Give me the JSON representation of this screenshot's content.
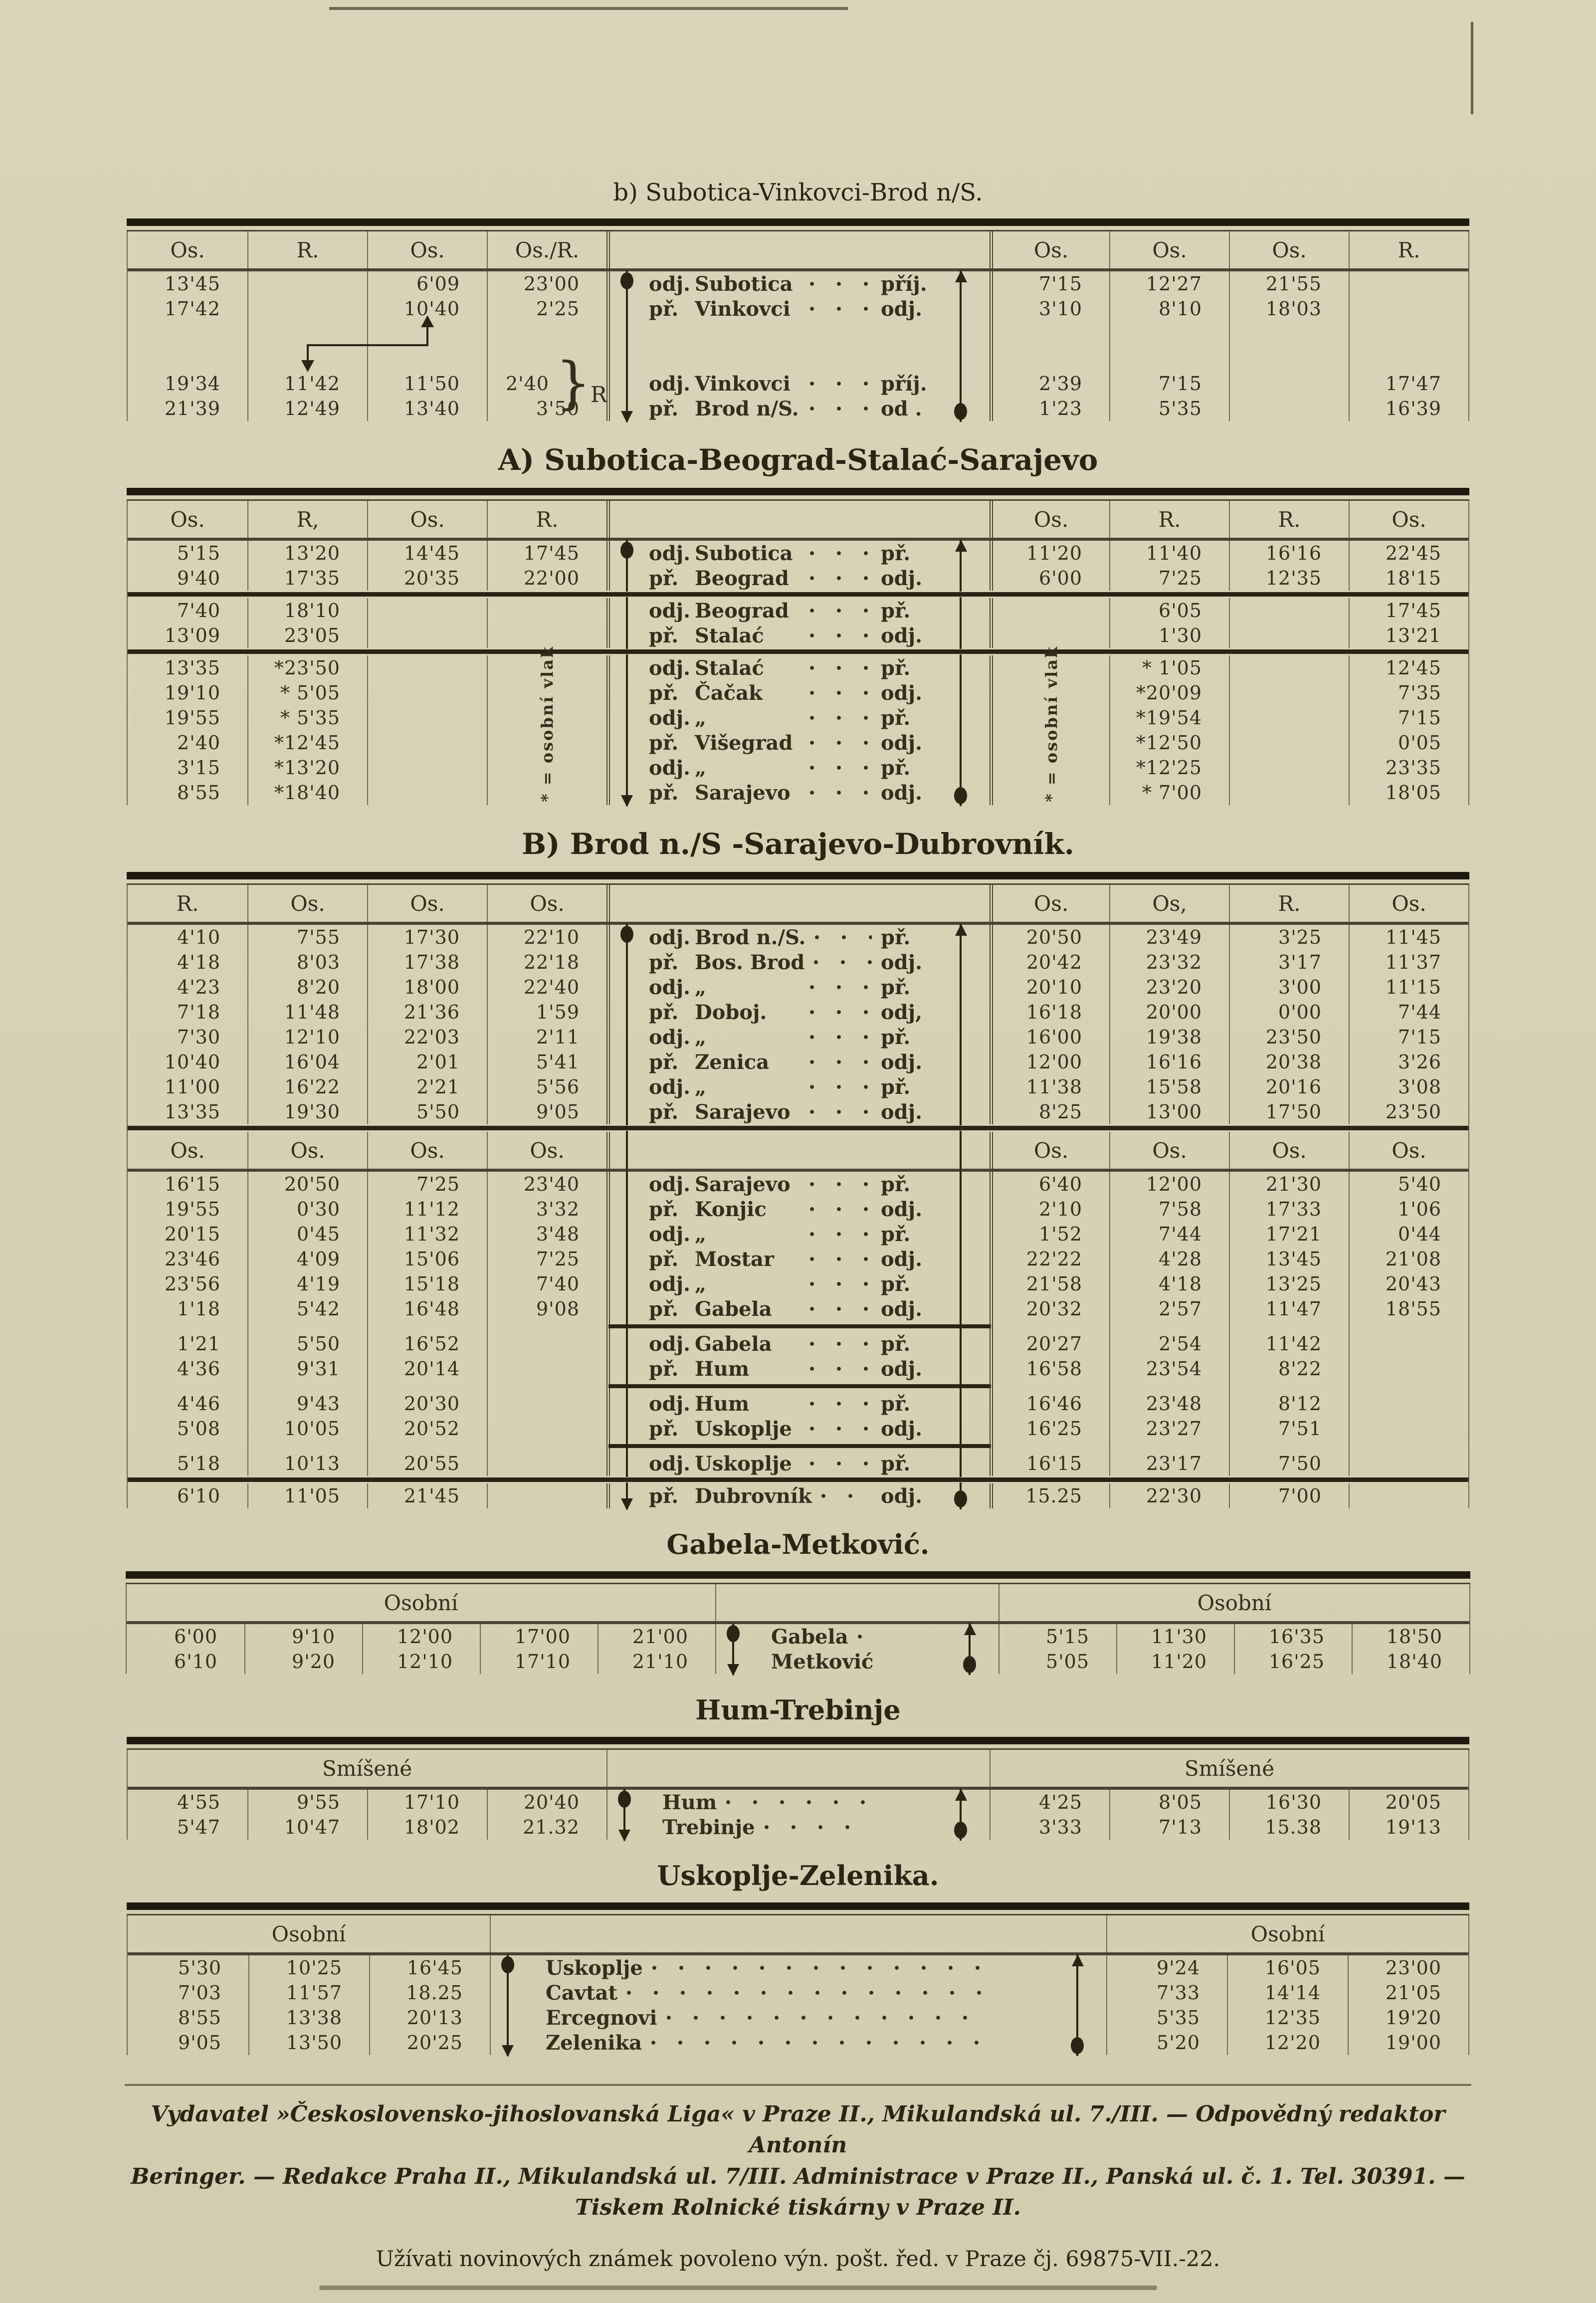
{
  "legend": {
    "note": "* = osobní vlak"
  },
  "tables": [
    {
      "title": "b) Subotica-Vinkovci-Brod n/S.",
      "blocks": [
        {
          "kind": "header",
          "left": [
            "Os.",
            "R.",
            "Os.",
            "Os./R."
          ],
          "right": [
            "Os.",
            "Os.",
            "Os.",
            "R."
          ]
        },
        {
          "kind": "rows",
          "rows": [
            {
              "l": [
                "13'45",
                "",
                "6'09",
                "23'00"
              ],
              "pre": "odj.",
              "name": "Subotica",
              "post": "příj.",
              "r": [
                "7'15",
                "12'27",
                "21'55",
                ""
              ]
            },
            {
              "l": [
                "17'42",
                "",
                "10'40",
                "2'25"
              ],
              "pre": "př.",
              "name": "Vinkovci",
              "post": "odj.",
              "r": [
                "3'10",
                "8'10",
                "18'03",
                ""
              ]
            }
          ]
        },
        {
          "kind": "gap"
        },
        {
          "kind": "rows",
          "rows": [
            {
              "l": [
                "19'34",
                "11'42",
                "11'50",
                "2'40"
              ],
              "pre": "odj.",
              "name": "Vinkovci",
              "post": "příj.",
              "r": [
                "2'39",
                "7'15",
                "",
                "17'47"
              ],
              "brace": "R"
            },
            {
              "l": [
                "21'39",
                "12'49",
                "13'40",
                "3'50"
              ],
              "pre": "př.",
              "name": "Brod n/S.",
              "post": "od .",
              "r": [
                "1'23",
                "5'35",
                "",
                "16'39"
              ]
            }
          ]
        }
      ]
    },
    {
      "title": "A) Subotica-Beograd-Stalać-Sarajevo",
      "blocks": [
        {
          "kind": "header",
          "left": [
            "Os.",
            "R,",
            "Os.",
            "R."
          ],
          "right": [
            "Os.",
            "R.",
            "R.",
            "Os."
          ]
        },
        {
          "kind": "rows",
          "rows": [
            {
              "l": [
                "5'15",
                "13'20",
                "14'45",
                "17'45"
              ],
              "pre": "odj.",
              "name": "Subotica",
              "post": "př.",
              "r": [
                "11'20",
                "11'40",
                "16'16",
                "22'45"
              ]
            },
            {
              "l": [
                "9'40",
                "17'35",
                "20'35",
                "22'00"
              ],
              "pre": "př.",
              "name": "Beograd",
              "post": "odj.",
              "r": [
                "6'00",
                "7'25",
                "12'35",
                "18'15"
              ]
            }
          ]
        },
        {
          "kind": "sep",
          "style": "full"
        },
        {
          "kind": "rows",
          "rows": [
            {
              "l": [
                "7'40",
                "18'10",
                "",
                ""
              ],
              "pre": "odj.",
              "name": "Beograd",
              "post": "př.",
              "r": [
                "",
                "6'05",
                "",
                "17'45"
              ]
            },
            {
              "l": [
                "13'09",
                "23'05",
                "",
                ""
              ],
              "pre": "př.",
              "name": "Stalać",
              "post": "odj.",
              "r": [
                "",
                "1'30",
                "",
                "13'21"
              ]
            }
          ]
        },
        {
          "kind": "sep",
          "style": "full"
        },
        {
          "kind": "rows",
          "rows": [
            {
              "l": [
                "13'35",
                "*23'50",
                "",
                ""
              ],
              "pre": "odj.",
              "name": "Stalać",
              "post": "př.",
              "r": [
                "",
                "* 1'05",
                "",
                "12'45"
              ],
              "noteL": true,
              "noteR": true
            },
            {
              "l": [
                "19'10",
                "* 5'05",
                "",
                ""
              ],
              "pre": "př.",
              "name": "Čačak",
              "post": "odj.",
              "r": [
                "",
                "*20'09",
                "",
                "7'35"
              ]
            },
            {
              "l": [
                "19'55",
                "* 5'35",
                "",
                ""
              ],
              "pre": "odj.",
              "name": "„",
              "post": "př.",
              "r": [
                "",
                "*19'54",
                "",
                "7'15"
              ]
            },
            {
              "l": [
                "2'40",
                "*12'45",
                "",
                ""
              ],
              "pre": "př.",
              "name": "Višegrad",
              "post": "odj.",
              "r": [
                "",
                "*12'50",
                "",
                "0'05"
              ]
            },
            {
              "l": [
                "3'15",
                "*13'20",
                "",
                ""
              ],
              "pre": "odj.",
              "name": "„",
              "post": "př.",
              "r": [
                "",
                "*12'25",
                "",
                "23'35"
              ]
            },
            {
              "l": [
                "8'55",
                "*18'40",
                "",
                ""
              ],
              "pre": "př.",
              "name": "Sarajevo",
              "post": "odj.",
              "r": [
                "",
                "* 7'00",
                "",
                "18'05"
              ]
            }
          ]
        }
      ]
    },
    {
      "title": "B) Brod n./S -Sarajevo-Dubrovník.",
      "blocks": [
        {
          "kind": "header",
          "left": [
            "R.",
            "Os.",
            "Os.",
            "Os."
          ],
          "right": [
            "Os.",
            "Os,",
            "R.",
            "Os."
          ]
        },
        {
          "kind": "rows",
          "rows": [
            {
              "l": [
                "4'10",
                "7'55",
                "17'30",
                "22'10"
              ],
              "pre": "odj.",
              "name": "Brod n./S.",
              "post": "př.",
              "r": [
                "20'50",
                "23'49",
                "3'25",
                "11'45"
              ]
            },
            {
              "l": [
                "4'18",
                "8'03",
                "17'38",
                "22'18"
              ],
              "pre": "př.",
              "name": "Bos. Brod",
              "post": "odj.",
              "r": [
                "20'42",
                "23'32",
                "3'17",
                "11'37"
              ]
            },
            {
              "l": [
                "4'23",
                "8'20",
                "18'00",
                "22'40"
              ],
              "pre": "odj.",
              "name": "„",
              "post": "př.",
              "r": [
                "20'10",
                "23'20",
                "3'00",
                "11'15"
              ]
            },
            {
              "l": [
                "7'18",
                "11'48",
                "21'36",
                "1'59"
              ],
              "pre": "př.",
              "name": "Doboj.",
              "post": "odj,",
              "r": [
                "16'18",
                "20'00",
                "0'00",
                "7'44"
              ]
            },
            {
              "l": [
                "7'30",
                "12'10",
                "22'03",
                "2'11"
              ],
              "pre": "odj.",
              "name": "„",
              "post": "př.",
              "r": [
                "16'00",
                "19'38",
                "23'50",
                "7'15"
              ]
            },
            {
              "l": [
                "10'40",
                "16'04",
                "2'01",
                "5'41"
              ],
              "pre": "př.",
              "name": "Zenica",
              "post": "odj.",
              "r": [
                "12'00",
                "16'16",
                "20'38",
                "3'26"
              ]
            },
            {
              "l": [
                "11'00",
                "16'22",
                "2'21",
                "5'56"
              ],
              "pre": "odj.",
              "name": "„",
              "post": "př.",
              "r": [
                "11'38",
                "15'58",
                "20'16",
                "3'08"
              ]
            },
            {
              "l": [
                "13'35",
                "19'30",
                "5'50",
                "9'05"
              ],
              "pre": "př.",
              "name": "Sarajevo",
              "post": "odj.",
              "r": [
                "8'25",
                "13'00",
                "17'50",
                "23'50"
              ]
            }
          ]
        },
        {
          "kind": "sep",
          "style": "full"
        },
        {
          "kind": "header",
          "left": [
            "Os.",
            "Os.",
            "Os.",
            "Os."
          ],
          "right": [
            "Os.",
            "Os.",
            "Os.",
            "Os."
          ]
        },
        {
          "kind": "rows",
          "rows": [
            {
              "l": [
                "16'15",
                "20'50",
                "7'25",
                "23'40"
              ],
              "pre": "odj.",
              "name": "Sarajevo",
              "post": "př.",
              "r": [
                "6'40",
                "12'00",
                "21'30",
                "5'40"
              ]
            },
            {
              "l": [
                "19'55",
                "0'30",
                "11'12",
                "3'32"
              ],
              "pre": "př.",
              "name": "Konjic",
              "post": "odj.",
              "r": [
                "2'10",
                "7'58",
                "17'33",
                "1'06"
              ]
            },
            {
              "l": [
                "20'15",
                "0'45",
                "11'32",
                "3'48"
              ],
              "pre": "odj.",
              "name": "„",
              "post": "př.",
              "r": [
                "1'52",
                "7'44",
                "17'21",
                "0'44"
              ]
            },
            {
              "l": [
                "23'46",
                "4'09",
                "15'06",
                "7'25"
              ],
              "pre": "př.",
              "name": "Mostar",
              "post": "odj.",
              "r": [
                "22'22",
                "4'28",
                "13'45",
                "21'08"
              ]
            },
            {
              "l": [
                "23'56",
                "4'19",
                "15'18",
                "7'40"
              ],
              "pre": "odj.",
              "name": "„",
              "post": "př.",
              "r": [
                "21'58",
                "4'18",
                "13'25",
                "20'43"
              ]
            },
            {
              "l": [
                "1'18",
                "5'42",
                "16'48",
                "9'08"
              ],
              "pre": "př.",
              "name": "Gabela",
              "post": "odj.",
              "r": [
                "20'32",
                "2'57",
                "11'47",
                "18'55"
              ]
            }
          ]
        },
        {
          "kind": "sep",
          "style": "station"
        },
        {
          "kind": "rows",
          "rows": [
            {
              "l": [
                "1'21",
                "5'50",
                "16'52",
                ""
              ],
              "pre": "odj.",
              "name": "Gabela",
              "post": "př.",
              "r": [
                "20'27",
                "2'54",
                "11'42",
                ""
              ]
            },
            {
              "l": [
                "4'36",
                "9'31",
                "20'14",
                ""
              ],
              "pre": "př.",
              "name": "Hum",
              "post": "odj.",
              "r": [
                "16'58",
                "23'54",
                "8'22",
                ""
              ]
            }
          ]
        },
        {
          "kind": "sep",
          "style": "station"
        },
        {
          "kind": "rows",
          "rows": [
            {
              "l": [
                "4'46",
                "9'43",
                "20'30",
                ""
              ],
              "pre": "odj.",
              "name": "Hum",
              "post": "př.",
              "r": [
                "16'46",
                "23'48",
                "8'12",
                ""
              ]
            },
            {
              "l": [
                "5'08",
                "10'05",
                "20'52",
                ""
              ],
              "pre": "př.",
              "name": "Uskoplje",
              "post": "odj.",
              "r": [
                "16'25",
                "23'27",
                "7'51",
                ""
              ]
            }
          ]
        },
        {
          "kind": "sep",
          "style": "station"
        },
        {
          "kind": "rows",
          "rows": [
            {
              "l": [
                "5'18",
                "10'13",
                "20'55",
                ""
              ],
              "pre": "odj.",
              "name": "Uskoplje",
              "post": "př.",
              "r": [
                "16'15",
                "23'17",
                "7'50",
                ""
              ]
            }
          ]
        },
        {
          "kind": "sep",
          "style": "full"
        },
        {
          "kind": "rows",
          "rows": [
            {
              "l": [
                "6'10",
                "11'05",
                "21'45",
                ""
              ],
              "pre": "př.",
              "name": "Dubrovník",
              "post": "odj.",
              "r": [
                "15.25",
                "22'30",
                "7'00",
                ""
              ]
            }
          ]
        }
      ]
    },
    {
      "title": "Gabela-Metković.",
      "blocks": [
        {
          "kind": "header-span",
          "left": "Osobní",
          "right": "Osobní"
        },
        {
          "kind": "rows",
          "rows": [
            {
              "l": [
                "6'00",
                "9'10",
                "12'00",
                "17'00",
                "21'00"
              ],
              "name": "Gabela",
              "r": [
                "5'15",
                "11'30",
                "16'35",
                "18'50"
              ]
            },
            {
              "l": [
                "6'10",
                "9'20",
                "12'10",
                "17'10",
                "21'10"
              ],
              "name": "Metković",
              "r": [
                "5'05",
                "11'20",
                "16'25",
                "18'40"
              ]
            }
          ]
        }
      ]
    },
    {
      "title": "Hum-Trebinje",
      "blocks": [
        {
          "kind": "header-span",
          "left": "Smíšené",
          "right": "Smíšené"
        },
        {
          "kind": "rows",
          "rows": [
            {
              "l": [
                "4'55",
                "9'55",
                "17'10",
                "20'40"
              ],
              "name": "Hum",
              "r": [
                "4'25",
                "8'05",
                "16'30",
                "20'05"
              ]
            },
            {
              "l": [
                "5'47",
                "10'47",
                "18'02",
                "21.32"
              ],
              "name": "Trebinje",
              "r": [
                "3'33",
                "7'13",
                "15.38",
                "19'13"
              ]
            }
          ]
        }
      ]
    },
    {
      "title": "Uskoplje-Zelenika.",
      "blocks": [
        {
          "kind": "header-span",
          "left": "Osobní",
          "right": "Osobní"
        },
        {
          "kind": "rows",
          "rows": [
            {
              "l": [
                "5'30",
                "10'25",
                "16'45"
              ],
              "name": "Uskoplje",
              "r": [
                "9'24",
                "16'05",
                "23'00"
              ]
            },
            {
              "l": [
                "7'03",
                "11'57",
                "18.25"
              ],
              "name": "Cavtat",
              "r": [
                "7'33",
                "14'14",
                "21'05"
              ]
            },
            {
              "l": [
                "8'55",
                "13'38",
                "20'13"
              ],
              "name": "Ercegnovi",
              "r": [
                "5'35",
                "12'35",
                "19'20"
              ]
            },
            {
              "l": [
                "9'05",
                "13'50",
                "20'25"
              ],
              "name": "Zelenika",
              "r": [
                "5'20",
                "12'20",
                "19'00"
              ]
            }
          ]
        }
      ]
    }
  ],
  "footer": {
    "line1": "Vydavatel »Československo-jihoslovanská Liga« v Praze II., Mikulandská ul. 7./III. — Odpovědný redaktor Antonín",
    "line2": "Beringer. — Redakce Praha II., Mikulandská ul. 7/III. Administrace v Praze II., Panská ul. č. 1. Tel. 30391. —",
    "line3": "Tiskem Rolnické tiskárny v Praze II.",
    "notice": "Užívati novinových známek povoleno výn. pošt. řed. v Praze čj. 69875-VII.-22."
  }
}
